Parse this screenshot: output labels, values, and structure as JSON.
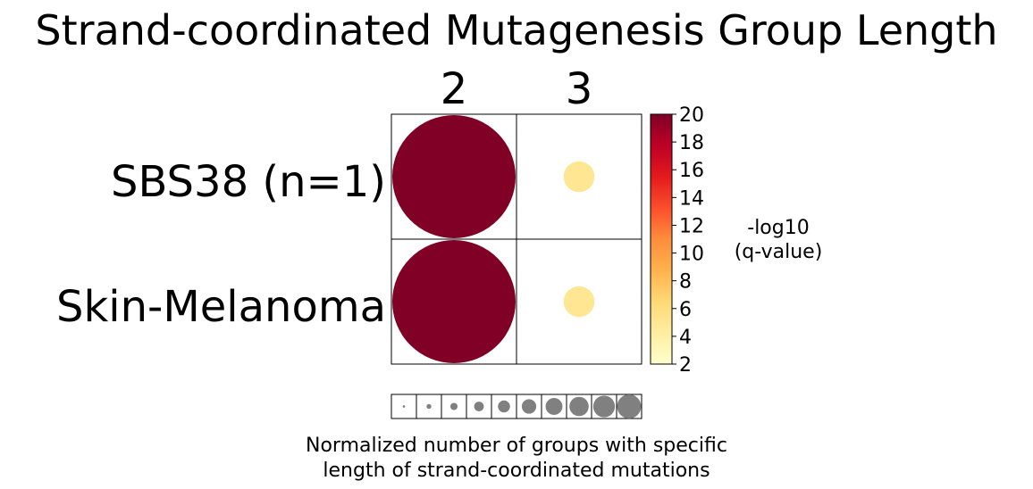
{
  "chart_data": {
    "type": "bubble-heatmap",
    "title": "Strand-coordinated Mutagenesis Group Length",
    "columns": [
      "2",
      "3"
    ],
    "rows": [
      "SBS38 (n=1)",
      "Skin-Melanoma"
    ],
    "cells": [
      {
        "row": "SBS38 (n=1)",
        "column": "2",
        "normalized_count": 1.0,
        "neg_log10_q": 20
      },
      {
        "row": "SBS38 (n=1)",
        "column": "3",
        "normalized_count": 0.25,
        "neg_log10_q": 5
      },
      {
        "row": "Skin-Melanoma",
        "column": "2",
        "normalized_count": 1.0,
        "neg_log10_q": 20
      },
      {
        "row": "Skin-Melanoma",
        "column": "3",
        "normalized_count": 0.25,
        "neg_log10_q": 5
      }
    ],
    "colorbar": {
      "label_line1": "-log10",
      "label_line2": "(q-value)",
      "range": [
        2,
        20
      ],
      "ticks": [
        "2",
        "4",
        "6",
        "8",
        "10",
        "12",
        "14",
        "16",
        "18",
        "20"
      ],
      "colors": [
        "#ffffcc",
        "#ffeda0",
        "#fed976",
        "#feb24c",
        "#fd8d3c",
        "#fc4e2a",
        "#e31a1c",
        "#bd0026",
        "#800026"
      ]
    },
    "size_legend": {
      "steps": [
        0.1,
        0.2,
        0.3,
        0.4,
        0.5,
        0.6,
        0.7,
        0.8,
        0.9,
        1.0
      ],
      "color": "#808080",
      "label_line1": "Normalized number of groups with specific",
      "label_line2": "length of strand-coordinated mutations"
    }
  }
}
